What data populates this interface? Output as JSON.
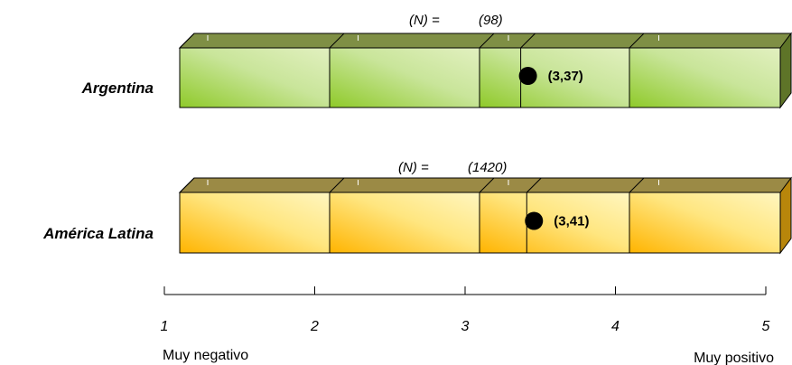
{
  "chart_data": {
    "type": "bar",
    "orientation": "horizontal",
    "style": "3d-segmented-scale",
    "xlim": [
      1,
      5
    ],
    "ticks": [
      "1",
      "2",
      "3",
      "4",
      "5"
    ],
    "axis_left_label": "Muy negativo",
    "axis_right_label": "Muy positivo",
    "n_label": "(N) =",
    "rows": [
      {
        "label": "Argentina",
        "value": 3.37,
        "value_label": "(3,37)",
        "n": "(98)",
        "color_front": "#cfe7a0",
        "color_front_dark": "#8fca2a",
        "color_top": "#7f8f45",
        "color_side": "#5e7428"
      },
      {
        "label": "América Latina",
        "value": 3.41,
        "value_label": "(3,41)",
        "n": "(1420)",
        "color_front": "#fff2a6",
        "color_front_dark": "#ffb400",
        "color_top": "#9b8a45",
        "color_side": "#b8860b"
      }
    ]
  }
}
